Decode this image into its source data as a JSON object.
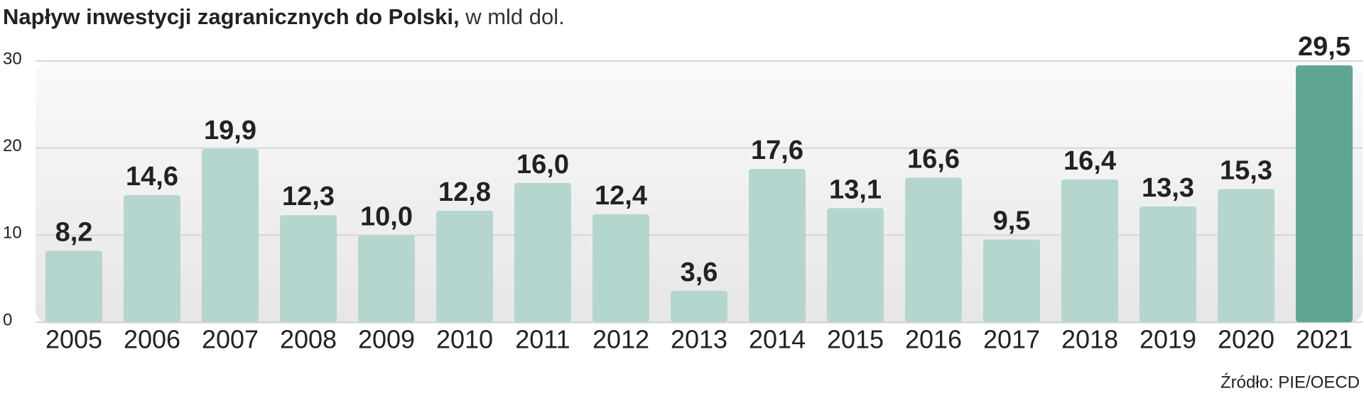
{
  "chart_data": {
    "type": "bar",
    "title": "Napływ  inwestycji zagranicznych do Polski,",
    "subtitle": "w mld dol.",
    "source": "Źródło: PIE/OECD",
    "categories": [
      "2005",
      "2006",
      "2007",
      "2008",
      "2009",
      "2010",
      "2011",
      "2012",
      "2013",
      "2014",
      "2015",
      "2016",
      "2017",
      "2018",
      "2019",
      "2020",
      "2021"
    ],
    "values": [
      8.2,
      14.6,
      19.9,
      12.3,
      10.0,
      12.8,
      16.0,
      12.4,
      3.6,
      17.6,
      13.1,
      16.6,
      9.5,
      16.4,
      13.3,
      15.3,
      29.5
    ],
    "value_labels": [
      "8,2",
      "14,6",
      "19,9",
      "12,3",
      "10,0",
      "12,8",
      "16,0",
      "12,4",
      "3,6",
      "17,6",
      "13,1",
      "16,6",
      "9,5",
      "16,4",
      "13,3",
      "15,3",
      "29,5"
    ],
    "colors": [
      "#b5d6ce",
      "#b5d6ce",
      "#b5d6ce",
      "#b5d6ce",
      "#b5d6ce",
      "#b5d6ce",
      "#b5d6ce",
      "#b5d6ce",
      "#b5d6ce",
      "#b5d6ce",
      "#b5d6ce",
      "#b5d6ce",
      "#b5d6ce",
      "#b5d6ce",
      "#b5d6ce",
      "#b5d6ce",
      "#5fa593"
    ],
    "ylim": [
      0,
      30
    ],
    "yticks": [
      0,
      10,
      20,
      30
    ],
    "grid": true
  }
}
